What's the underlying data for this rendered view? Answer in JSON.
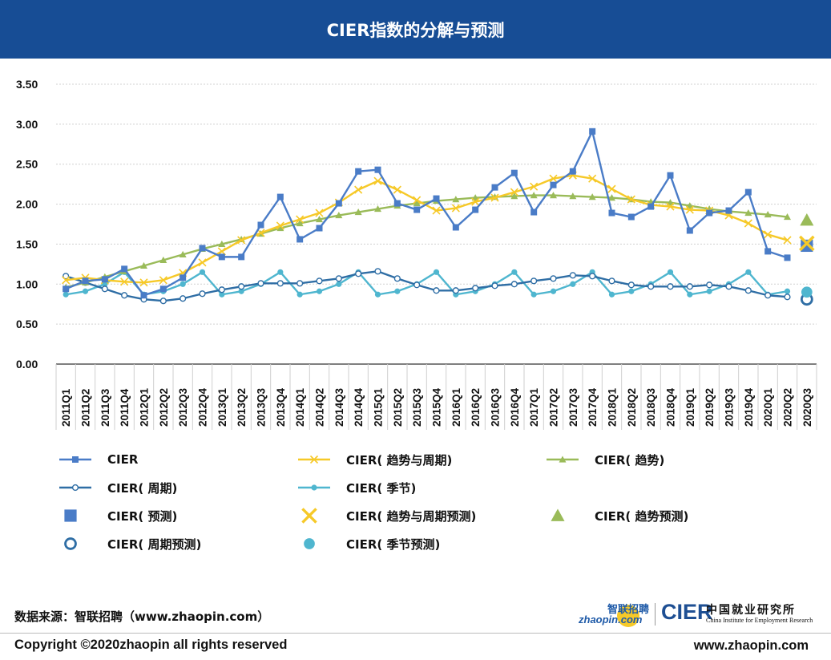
{
  "header": {
    "title": "CIER指数的分解与预测"
  },
  "chart_data": {
    "type": "line",
    "categories": [
      "2011Q1",
      "2011Q2",
      "2011Q3",
      "2011Q4",
      "2012Q1",
      "2012Q2",
      "2012Q3",
      "2012Q4",
      "2013Q1",
      "2013Q2",
      "2013Q3",
      "2013Q4",
      "2014Q1",
      "2014Q2",
      "2014Q3",
      "2014Q4",
      "2015Q1",
      "2015Q2",
      "2015Q3",
      "2015Q4",
      "2016Q1",
      "2016Q2",
      "2016Q3",
      "2016Q4",
      "2017Q1",
      "2017Q2",
      "2017Q3",
      "2017Q4",
      "2018Q1",
      "2018Q2",
      "2018Q3",
      "2018Q4",
      "2019Q1",
      "2019Q2",
      "2019Q3",
      "2019Q4",
      "2020Q1",
      "2020Q2",
      "2020Q3"
    ],
    "ylim": [
      0,
      3.5
    ],
    "yticks": [
      "0.00",
      "0.50",
      "1.00",
      "1.50",
      "2.00",
      "2.50",
      "3.00",
      "3.50"
    ],
    "grid": true,
    "legend_position": "bottom",
    "series": [
      {
        "name": "CIER",
        "color": "#4a7cc7",
        "marker": "square",
        "line": true,
        "values": [
          0.94,
          1.04,
          1.06,
          1.19,
          0.86,
          0.94,
          1.08,
          1.45,
          1.34,
          1.34,
          1.74,
          2.09,
          1.56,
          1.7,
          2.01,
          2.41,
          2.43,
          2.01,
          1.93,
          2.07,
          1.71,
          1.93,
          2.21,
          2.39,
          1.9,
          2.24,
          2.41,
          2.91,
          1.89,
          1.84,
          1.97,
          2.36,
          1.67,
          1.89,
          1.92,
          2.15,
          1.41,
          1.33,
          null
        ]
      },
      {
        "name": "CIER( 趋势与周期)",
        "color": "#f6c928",
        "marker": "x",
        "line": true,
        "values": [
          1.05,
          1.08,
          1.05,
          1.03,
          1.02,
          1.05,
          1.14,
          1.27,
          1.41,
          1.55,
          1.64,
          1.73,
          1.81,
          1.89,
          2.02,
          2.18,
          2.29,
          2.18,
          2.05,
          1.92,
          1.95,
          2.03,
          2.08,
          2.15,
          2.22,
          2.32,
          2.36,
          2.32,
          2.19,
          2.06,
          1.99,
          1.97,
          1.93,
          1.92,
          1.86,
          1.76,
          1.62,
          1.55,
          null
        ]
      },
      {
        "name": "CIER( 趋势)",
        "color": "#9abb59",
        "marker": "triangle",
        "line": true,
        "values": [
          0.96,
          1.02,
          1.09,
          1.16,
          1.23,
          1.3,
          1.37,
          1.44,
          1.5,
          1.56,
          1.63,
          1.7,
          1.76,
          1.81,
          1.86,
          1.9,
          1.94,
          1.98,
          2.01,
          2.04,
          2.06,
          2.08,
          2.09,
          2.1,
          2.11,
          2.11,
          2.1,
          2.09,
          2.08,
          2.06,
          2.03,
          2.02,
          1.98,
          1.94,
          1.91,
          1.89,
          1.87,
          1.84,
          null
        ]
      },
      {
        "name": "CIER( 周期)",
        "color": "#2f6ea5",
        "marker": "circle-open",
        "line": true,
        "values": [
          1.1,
          1.02,
          0.94,
          0.86,
          0.81,
          0.79,
          0.82,
          0.88,
          0.93,
          0.97,
          1.01,
          1.01,
          1.01,
          1.04,
          1.07,
          1.13,
          1.16,
          1.07,
          0.99,
          0.92,
          0.92,
          0.95,
          0.98,
          1.0,
          1.04,
          1.07,
          1.11,
          1.1,
          1.04,
          0.99,
          0.97,
          0.97,
          0.97,
          0.99,
          0.97,
          0.92,
          0.86,
          0.84,
          null
        ]
      },
      {
        "name": "CIER( 季节)",
        "color": "#4fb6cf",
        "marker": "circle-filled",
        "line": true,
        "values": [
          0.87,
          0.91,
          1.0,
          1.15,
          0.87,
          0.91,
          1.0,
          1.15,
          0.87,
          0.91,
          1.0,
          1.15,
          0.87,
          0.91,
          1.0,
          1.15,
          0.87,
          0.91,
          1.0,
          1.15,
          0.87,
          0.91,
          1.0,
          1.15,
          0.87,
          0.91,
          1.0,
          1.15,
          0.87,
          0.91,
          1.0,
          1.15,
          0.87,
          0.91,
          1.0,
          1.15,
          0.87,
          0.91,
          null
        ]
      },
      {
        "name": "CIER( 预测)",
        "color": "#4a7cc7",
        "marker": "square-big",
        "line": false,
        "point": {
          "x": "2020Q3",
          "y": 1.48
        }
      },
      {
        "name": "CIER( 趋势与周期预测)",
        "color": "#f6c928",
        "marker": "x-big",
        "line": false,
        "point": {
          "x": "2020Q3",
          "y": 1.51
        }
      },
      {
        "name": "CIER( 趋势预测)",
        "color": "#9abb59",
        "marker": "triangle-big",
        "line": false,
        "point": {
          "x": "2020Q3",
          "y": 1.8
        }
      },
      {
        "name": "CIER( 周期预测)",
        "color": "#2f6ea5",
        "marker": "circle-open-big",
        "line": false,
        "point": {
          "x": "2020Q3",
          "y": 0.81
        }
      },
      {
        "name": "CIER( 季节预测)",
        "color": "#4fb6cf",
        "marker": "circle-filled-big",
        "line": false,
        "point": {
          "x": "2020Q3",
          "y": 0.9
        }
      }
    ]
  },
  "legend": [
    {
      "label": "CIER",
      "series": 0
    },
    {
      "label": "CIER( 趋势与周期)",
      "series": 1
    },
    {
      "label": "CIER( 趋势)",
      "series": 2
    },
    {
      "label": "CIER( 周期)",
      "series": 3
    },
    {
      "label": "CIER( 季节)",
      "series": 4
    },
    {
      "label": "CIER( 预测)",
      "series": 5
    },
    {
      "label": "CIER( 趋势与周期预测)",
      "series": 6
    },
    {
      "label": "CIER( 趋势预测)",
      "series": 7
    },
    {
      "label": "CIER( 周期预测)",
      "series": 8
    },
    {
      "label": "CIER( 季节预测)",
      "series": 9
    }
  ],
  "footer": {
    "source": "数据来源：智联招聘（www.zhaopin.com）",
    "copyright": "Copyright ©2020zhaopin all rights reserved",
    "url": "www.zhaopin.com"
  },
  "logos": {
    "zhaopin_cn": "智联招聘",
    "zhaopin_en": "zhaopin.com",
    "cier_big": "CIER",
    "cier_cn": "中国就业研究所",
    "cier_en": "China Institute for Employment Research"
  }
}
